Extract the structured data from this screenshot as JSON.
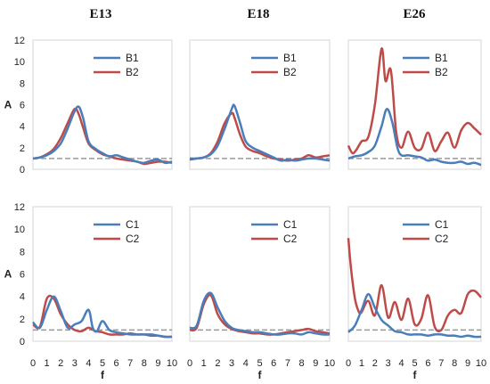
{
  "figure": {
    "column_titles": [
      "E13",
      "E18",
      "E26"
    ],
    "xlabel": "f",
    "ylabel": "A",
    "y_ticks": [
      "0",
      "2",
      "4",
      "6",
      "8",
      "10",
      "12"
    ],
    "x_ticks": [
      "0",
      "1",
      "2",
      "3",
      "4",
      "5",
      "6",
      "7",
      "8",
      "9",
      "10"
    ]
  },
  "colors": {
    "series_1": "#4a7ebb",
    "series_2": "#be4b48",
    "reference": "#999999",
    "frame": "#d4d4d4"
  },
  "chart_data": [
    {
      "type": "line",
      "panel": "E13 top",
      "xlim": [
        0,
        10
      ],
      "ylim": [
        0,
        12
      ],
      "grid": false,
      "legend": "top-right",
      "reference_line": 1,
      "series": [
        {
          "name": "B1",
          "x": [
            0,
            0.5,
            1,
            1.5,
            2,
            2.5,
            3,
            3.3,
            3.6,
            4,
            4.5,
            5,
            5.5,
            6,
            6.5,
            7,
            7.5,
            8,
            8.5,
            9,
            9.5,
            10
          ],
          "y": [
            1.0,
            1.1,
            1.3,
            1.7,
            2.4,
            3.8,
            5.4,
            5.8,
            4.8,
            2.6,
            1.9,
            1.5,
            1.2,
            1.3,
            1.1,
            0.9,
            0.7,
            0.6,
            0.8,
            0.9,
            0.6,
            0.7
          ]
        },
        {
          "name": "B2",
          "x": [
            0,
            0.5,
            1,
            1.5,
            2,
            2.5,
            3,
            3.3,
            3.6,
            4,
            4.5,
            5,
            5.5,
            6,
            6.5,
            7,
            7.5,
            8,
            8.5,
            9,
            9.5,
            10
          ],
          "y": [
            1.0,
            1.1,
            1.4,
            1.9,
            2.9,
            4.3,
            5.6,
            5.1,
            3.9,
            2.4,
            1.8,
            1.4,
            1.2,
            1.0,
            0.9,
            0.8,
            0.7,
            0.5,
            0.6,
            0.7,
            0.7,
            0.6
          ]
        }
      ]
    },
    {
      "type": "line",
      "panel": "E18 top",
      "xlim": [
        0,
        10
      ],
      "ylim": [
        0,
        12
      ],
      "grid": false,
      "legend": "top-right",
      "reference_line": 1,
      "series": [
        {
          "name": "B1",
          "x": [
            0,
            0.5,
            1,
            1.5,
            2,
            2.5,
            3,
            3.2,
            3.6,
            4,
            4.5,
            5,
            5.5,
            6,
            6.5,
            7,
            7.5,
            8,
            8.5,
            9,
            9.5,
            10
          ],
          "y": [
            1.0,
            1.0,
            1.1,
            1.4,
            2.2,
            3.8,
            5.6,
            5.9,
            4.3,
            2.6,
            2.0,
            1.7,
            1.4,
            1.1,
            0.8,
            0.9,
            0.8,
            0.9,
            1.0,
            1.0,
            0.9,
            0.8
          ]
        },
        {
          "name": "B2",
          "x": [
            0,
            0.5,
            1,
            1.5,
            2,
            2.5,
            3,
            3.2,
            3.6,
            4,
            4.5,
            5,
            5.5,
            6,
            6.5,
            7,
            7.5,
            8,
            8.5,
            9,
            9.5,
            10
          ],
          "y": [
            0.9,
            1.0,
            1.1,
            1.5,
            2.6,
            4.3,
            5.2,
            4.8,
            3.2,
            2.1,
            1.7,
            1.5,
            1.2,
            1.0,
            0.9,
            0.8,
            0.9,
            1.0,
            1.3,
            1.1,
            1.2,
            1.3
          ]
        }
      ]
    },
    {
      "type": "line",
      "panel": "E26 top",
      "xlim": [
        0,
        10
      ],
      "ylim": [
        0,
        12
      ],
      "grid": false,
      "legend": "top-right",
      "reference_line": 1,
      "series": [
        {
          "name": "B1",
          "x": [
            0,
            0.5,
            1,
            1.5,
            2,
            2.5,
            2.9,
            3.3,
            3.7,
            4,
            4.5,
            5,
            5.5,
            6,
            6.5,
            7,
            7.5,
            8,
            8.5,
            9,
            9.5,
            10
          ],
          "y": [
            1.0,
            1.2,
            1.3,
            1.6,
            2.2,
            4.0,
            5.6,
            4.4,
            2.0,
            1.3,
            1.3,
            1.2,
            1.1,
            0.8,
            0.9,
            0.7,
            0.6,
            0.6,
            0.7,
            0.5,
            0.6,
            0.4
          ]
        },
        {
          "name": "B2",
          "x": [
            0,
            0.3,
            0.6,
            1,
            1.5,
            2,
            2.5,
            2.8,
            3.2,
            3.6,
            4,
            4.5,
            5,
            5.5,
            6,
            6.5,
            7,
            7.5,
            8,
            8.5,
            9,
            9.5,
            10
          ],
          "y": [
            2.2,
            1.5,
            1.8,
            2.6,
            3.0,
            6.0,
            11.2,
            8.2,
            9.2,
            3.5,
            2.0,
            3.5,
            2.0,
            1.9,
            3.4,
            1.7,
            2.6,
            3.4,
            2.0,
            3.6,
            4.3,
            3.8,
            3.2
          ]
        }
      ]
    },
    {
      "type": "line",
      "panel": "E13 bottom",
      "xlim": [
        0,
        10
      ],
      "ylim": [
        0,
        12
      ],
      "grid": false,
      "legend": "top-right",
      "reference_line": 1,
      "series": [
        {
          "name": "C1",
          "x": [
            0,
            0.5,
            1,
            1.5,
            2,
            2.5,
            3,
            3.5,
            4,
            4.3,
            4.6,
            5,
            5.5,
            6,
            6.5,
            7,
            7.5,
            8,
            8.5,
            9,
            9.5,
            10
          ],
          "y": [
            1.7,
            1.2,
            2.8,
            4.0,
            2.7,
            1.2,
            1.5,
            1.8,
            2.8,
            1.2,
            0.9,
            1.8,
            1.0,
            0.8,
            0.7,
            0.6,
            0.6,
            0.6,
            0.6,
            0.5,
            0.4,
            0.4
          ]
        },
        {
          "name": "C2",
          "x": [
            0,
            0.5,
            1,
            1.5,
            2,
            2.5,
            3,
            3.5,
            4,
            4.5,
            5,
            5.5,
            6,
            6.5,
            7,
            7.5,
            8,
            8.5,
            9,
            9.5,
            10
          ],
          "y": [
            1.5,
            1.3,
            3.8,
            3.8,
            2.4,
            1.5,
            1.0,
            0.9,
            1.2,
            0.9,
            0.8,
            0.6,
            0.6,
            0.6,
            0.7,
            0.6,
            0.6,
            0.5,
            0.5,
            0.4,
            0.4
          ]
        }
      ]
    },
    {
      "type": "line",
      "panel": "E18 bottom",
      "xlim": [
        0,
        10
      ],
      "ylim": [
        0,
        12
      ],
      "grid": false,
      "legend": "top-right",
      "reference_line": 1,
      "series": [
        {
          "name": "C1",
          "x": [
            0,
            0.5,
            1,
            1.5,
            2,
            2.5,
            3,
            3.5,
            4,
            4.5,
            5,
            5.5,
            6,
            6.5,
            7,
            7.5,
            8,
            8.5,
            9,
            9.5,
            10
          ],
          "y": [
            1.2,
            1.4,
            3.6,
            4.3,
            3.0,
            1.8,
            1.2,
            1.0,
            0.9,
            0.8,
            0.8,
            0.7,
            0.6,
            0.6,
            0.7,
            0.7,
            0.6,
            0.8,
            0.7,
            0.6,
            0.6
          ]
        },
        {
          "name": "C2",
          "x": [
            0,
            0.5,
            1,
            1.5,
            2,
            2.5,
            3,
            3.5,
            4,
            4.5,
            5,
            5.5,
            6,
            6.5,
            7,
            7.5,
            8,
            8.5,
            9,
            9.5,
            10
          ],
          "y": [
            1.0,
            1.2,
            3.3,
            4.1,
            2.4,
            1.5,
            1.1,
            0.9,
            0.8,
            0.7,
            0.7,
            0.6,
            0.6,
            0.7,
            0.8,
            0.9,
            1.0,
            1.1,
            0.9,
            0.8,
            0.7
          ]
        }
      ]
    },
    {
      "type": "line",
      "panel": "E26 bottom",
      "xlim": [
        0,
        10
      ],
      "ylim": [
        0,
        12
      ],
      "grid": false,
      "legend": "top-right",
      "reference_line": 1,
      "series": [
        {
          "name": "C1",
          "x": [
            0,
            0.5,
            1,
            1.5,
            2,
            2.5,
            3,
            3.5,
            4,
            4.5,
            5,
            5.5,
            6,
            6.5,
            7,
            7.5,
            8,
            8.5,
            9,
            9.5,
            10
          ],
          "y": [
            0.8,
            1.4,
            2.8,
            4.2,
            3.0,
            1.9,
            1.4,
            0.9,
            0.8,
            0.6,
            0.6,
            0.6,
            0.5,
            0.6,
            0.6,
            0.5,
            0.5,
            0.4,
            0.5,
            0.4,
            0.4
          ]
        },
        {
          "name": "C2",
          "x": [
            0,
            0.2,
            0.5,
            0.8,
            1,
            1.5,
            2,
            2.5,
            3,
            3.5,
            4,
            4.5,
            5,
            5.5,
            6,
            6.5,
            7,
            7.5,
            8,
            8.5,
            9,
            9.5,
            10
          ],
          "y": [
            9.2,
            6.5,
            3.8,
            2.6,
            2.6,
            3.6,
            2.3,
            5.0,
            2.1,
            3.5,
            1.9,
            3.8,
            1.5,
            2.0,
            4.1,
            1.3,
            1.0,
            2.3,
            2.8,
            2.5,
            4.2,
            4.5,
            3.9
          ]
        }
      ]
    }
  ]
}
